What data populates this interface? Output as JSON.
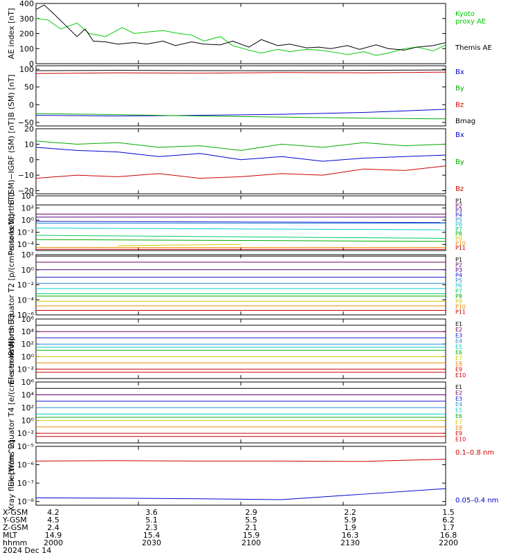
{
  "chart_data": [
    {
      "type": "line",
      "ylabel": "AE index [nT]",
      "ylim": [
        0,
        400
      ],
      "ylog": false,
      "yticks": [
        "400",
        "300",
        "200",
        "100",
        "0"
      ],
      "ytickvals": [
        400,
        300,
        200,
        100,
        0
      ],
      "series": [
        {
          "name": "Kyoto proxy AE",
          "color": "#00cc00",
          "legend_lines": [
            "Kyoto",
            "proxy AE"
          ],
          "x": [
            0,
            3,
            6,
            10,
            13,
            17,
            21,
            24,
            27,
            31,
            35,
            38,
            41,
            45,
            48,
            52,
            55,
            59,
            62,
            66,
            69,
            73,
            76,
            80,
            83,
            86,
            90,
            93,
            97,
            100
          ],
          "y": [
            300,
            290,
            230,
            270,
            200,
            180,
            240,
            200,
            210,
            220,
            200,
            190,
            150,
            180,
            120,
            90,
            70,
            95,
            80,
            95,
            90,
            75,
            60,
            80,
            55,
            70,
            100,
            110,
            85,
            125
          ]
        },
        {
          "name": "Themis AE",
          "color": "#000000",
          "legend_lines": [
            "Themis AE"
          ],
          "x": [
            0,
            2,
            4,
            7,
            10,
            12,
            14,
            17,
            20,
            24,
            27,
            31,
            34,
            38,
            41,
            45,
            48,
            52,
            55,
            59,
            62,
            66,
            69,
            72,
            76,
            79,
            83,
            86,
            90,
            93,
            97,
            100
          ],
          "y": [
            360,
            390,
            340,
            260,
            180,
            230,
            150,
            145,
            130,
            140,
            130,
            150,
            120,
            145,
            130,
            125,
            150,
            110,
            160,
            120,
            130,
            105,
            110,
            100,
            120,
            95,
            125,
            100,
            90,
            110,
            120,
            140
          ]
        }
      ]
    },
    {
      "type": "line",
      "ylabel": "B (SM) [nT]",
      "ylim": [
        -60,
        110
      ],
      "ylog": false,
      "yticks": [
        "100",
        "50",
        "0",
        "−50"
      ],
      "ytickvals": [
        100,
        50,
        0,
        -50
      ],
      "series": [
        {
          "name": "Bx",
          "color": "#0000cc",
          "x": [
            0,
            20,
            40,
            60,
            80,
            100
          ],
          "y": [
            -30,
            -32,
            -30,
            -27,
            -22,
            -13
          ]
        },
        {
          "name": "By",
          "color": "#00aa00",
          "x": [
            0,
            20,
            40,
            60,
            80,
            100
          ],
          "y": [
            -25,
            -28,
            -32,
            -35,
            -38,
            -40
          ]
        },
        {
          "name": "Bz",
          "color": "#cc0000",
          "x": [
            0,
            20,
            40,
            60,
            80,
            100
          ],
          "y": [
            88,
            90,
            89,
            91,
            90,
            92
          ]
        },
        {
          "name": "Bmag",
          "color": "#000000",
          "x": [
            0,
            20,
            40,
            60,
            80,
            100
          ],
          "y": [
            96,
            97,
            96,
            96,
            97,
            98
          ]
        }
      ]
    },
    {
      "type": "line",
      "ylabel": "B (SM)−IGRF (SM) [nT]",
      "ylim": [
        -22,
        20
      ],
      "ylog": false,
      "yticks": [
        "20",
        "10",
        "0",
        "−10",
        "−20"
      ],
      "ytickvals": [
        20,
        10,
        0,
        -10,
        -20
      ],
      "series": [
        {
          "name": "Bx",
          "color": "#0000cc",
          "x": [
            0,
            10,
            20,
            30,
            40,
            50,
            60,
            70,
            80,
            90,
            100
          ],
          "y": [
            8,
            6,
            5,
            2,
            4,
            0,
            2,
            -1,
            1,
            2,
            3
          ]
        },
        {
          "name": "By",
          "color": "#00aa00",
          "x": [
            0,
            10,
            20,
            30,
            40,
            50,
            60,
            70,
            80,
            90,
            100
          ],
          "y": [
            12,
            10,
            11,
            8,
            9,
            6,
            10,
            8,
            11,
            9,
            10
          ]
        },
        {
          "name": "Bz",
          "color": "#cc0000",
          "x": [
            0,
            10,
            20,
            30,
            40,
            50,
            60,
            70,
            80,
            90,
            100
          ],
          "y": [
            -12,
            -10,
            -11,
            -9,
            -12,
            -11,
            -9,
            -10,
            -6,
            -7,
            -4
          ]
        }
      ]
    },
    {
      "type": "line",
      "ylabel": "Protons North T1",
      "ylim": [
        -5,
        4
      ],
      "ylog": true,
      "yticks": [
        "10⁴",
        "10²",
        "10⁰",
        "10⁻²",
        "10⁻⁴"
      ],
      "ytickvals": [
        4,
        2,
        0,
        -2,
        -4
      ],
      "series": [
        {
          "name": "P1",
          "color": "#000000",
          "x": [
            0,
            100
          ],
          "y": [
            2.5,
            2.5
          ]
        },
        {
          "name": "P2",
          "color": "#660066",
          "x": [
            0,
            100
          ],
          "y": [
            1.0,
            1.0
          ]
        },
        {
          "name": "P3",
          "color": "#4b0082",
          "x": [
            0,
            100
          ],
          "y": [
            0.5,
            0.5
          ]
        },
        {
          "name": "P4",
          "color": "#1414cc",
          "x": [
            0,
            100
          ],
          "y": [
            -0.2,
            -0.4
          ]
        },
        {
          "name": "P5",
          "color": "#2a8ad4",
          "x": [
            0,
            100
          ],
          "y": [
            -0.5,
            -0.5
          ]
        },
        {
          "name": "P6",
          "color": "#00cccc",
          "x": [
            0,
            100
          ],
          "y": [
            -1.3,
            -1.6
          ]
        },
        {
          "name": "P7",
          "color": "#00cc66",
          "x": [
            0,
            100
          ],
          "y": [
            -2.5,
            -3.0
          ]
        },
        {
          "name": "P8",
          "color": "#00aa00",
          "x": [
            0,
            100
          ],
          "y": [
            -3.2,
            -3.5
          ]
        },
        {
          "name": "P9",
          "color": "#cccc00",
          "x": [
            20,
            50
          ],
          "y": [
            -4.2,
            -4.0
          ]
        },
        {
          "name": "P10",
          "color": "#ee8800",
          "x": [
            0,
            100
          ],
          "y": [
            -4.5,
            -4.5
          ]
        },
        {
          "name": "P11",
          "color": "#cc0000",
          "x": [
            0,
            100
          ],
          "y": [
            -4.8,
            -4.8
          ]
        }
      ]
    },
    {
      "type": "line",
      "ylabel": "Protons Equator T2 [p/(cm²-s-sr-keV)]",
      "ylim": [
        -6,
        2
      ],
      "ylog": true,
      "yticks": [
        "10²",
        "10⁰",
        "10⁻²",
        "10⁻⁴",
        "10⁻⁶"
      ],
      "ytickvals": [
        2,
        0,
        -2,
        -4,
        -6
      ],
      "series": [
        {
          "name": "P1",
          "color": "#000000",
          "x": [
            0,
            100
          ],
          "y": [
            1.8,
            1.8
          ]
        },
        {
          "name": "P2",
          "color": "#660066",
          "x": [
            0,
            100
          ],
          "y": [
            1.0,
            1.0
          ]
        },
        {
          "name": "P3",
          "color": "#4b0082",
          "x": [
            0,
            100
          ],
          "y": [
            0.0,
            0.0
          ]
        },
        {
          "name": "P4",
          "color": "#1414cc",
          "x": [
            0,
            100
          ],
          "y": [
            -1.0,
            -1.0
          ]
        },
        {
          "name": "P5",
          "color": "#2a8ad4",
          "x": [
            0,
            100
          ],
          "y": [
            -1.8,
            -1.8
          ]
        },
        {
          "name": "P6",
          "color": "#00cccc",
          "x": [
            0,
            100
          ],
          "y": [
            -2.5,
            -2.5
          ]
        },
        {
          "name": "P7",
          "color": "#00cc66",
          "x": [
            0,
            100
          ],
          "y": [
            -3.2,
            -3.2
          ]
        },
        {
          "name": "P8",
          "color": "#00aa00",
          "x": [
            0,
            100
          ],
          "y": [
            -3.5,
            -3.5
          ]
        },
        {
          "name": "P9",
          "color": "#cccc00",
          "x": [
            0,
            100
          ],
          "y": [
            -4.2,
            -4.2
          ]
        },
        {
          "name": "P10",
          "color": "#ee8800",
          "x": [
            0,
            100
          ],
          "y": [
            -4.8,
            -4.8
          ]
        },
        {
          "name": "P11",
          "color": "#cc0000",
          "x": [
            0,
            100
          ],
          "y": [
            -5.4,
            -5.4
          ]
        }
      ]
    },
    {
      "type": "line",
      "ylabel": "Electrons North T3",
      "ylim": [
        -3.5,
        6
      ],
      "ylog": true,
      "yticks": [
        "10⁶",
        "10⁴",
        "10²",
        "10⁰",
        "10⁻²"
      ],
      "ytickvals": [
        6,
        4,
        2,
        0,
        -2
      ],
      "series": [
        {
          "name": "E1",
          "color": "#000000",
          "x": [
            0,
            100
          ],
          "y": [
            5,
            5
          ]
        },
        {
          "name": "E2",
          "color": "#660066",
          "x": [
            0,
            100
          ],
          "y": [
            4,
            4
          ]
        },
        {
          "name": "E3",
          "color": "#1414cc",
          "x": [
            0,
            100
          ],
          "y": [
            3,
            3
          ]
        },
        {
          "name": "E4",
          "color": "#2a8ad4",
          "x": [
            0,
            100
          ],
          "y": [
            2,
            2
          ]
        },
        {
          "name": "E5",
          "color": "#00cccc",
          "x": [
            0,
            100
          ],
          "y": [
            1.5,
            1.5
          ]
        },
        {
          "name": "E6",
          "color": "#00aa00",
          "x": [
            0,
            100
          ],
          "y": [
            1,
            1
          ]
        },
        {
          "name": "E7",
          "color": "#cccc00",
          "x": [
            0,
            100
          ],
          "y": [
            0,
            0
          ]
        },
        {
          "name": "E8",
          "color": "#ee8800",
          "x": [
            0,
            100
          ],
          "y": [
            -1,
            -1
          ]
        },
        {
          "name": "E9",
          "color": "#cc0000",
          "x": [
            0,
            100
          ],
          "y": [
            -2,
            -2
          ]
        },
        {
          "name": "E10",
          "color": "#cc0000",
          "x": [
            0,
            100
          ],
          "y": [
            -2.5,
            -2.5
          ]
        }
      ]
    },
    {
      "type": "line",
      "ylabel": "Electrons Equator T4 [e/(cm²-s-sr-keV)]",
      "ylim": [
        -3.5,
        6
      ],
      "ylog": true,
      "yticks": [
        "10⁶",
        "10⁴",
        "10²",
        "10⁰",
        "10⁻²"
      ],
      "ytickvals": [
        6,
        4,
        2,
        0,
        -2
      ],
      "series": [
        {
          "name": "E1",
          "color": "#000000",
          "x": [
            0,
            100
          ],
          "y": [
            5,
            5
          ]
        },
        {
          "name": "E2",
          "color": "#660066",
          "x": [
            0,
            100
          ],
          "y": [
            4,
            4
          ]
        },
        {
          "name": "E3",
          "color": "#1414cc",
          "x": [
            0,
            100
          ],
          "y": [
            3,
            3
          ]
        },
        {
          "name": "E4",
          "color": "#2a8ad4",
          "x": [
            0,
            100
          ],
          "y": [
            2,
            2
          ]
        },
        {
          "name": "E5",
          "color": "#00cccc",
          "x": [
            0,
            100
          ],
          "y": [
            1,
            1
          ]
        },
        {
          "name": "E6",
          "color": "#00aa00",
          "x": [
            0,
            100
          ],
          "y": [
            0.5,
            0.5
          ]
        },
        {
          "name": "E7",
          "color": "#cccc00",
          "x": [
            0,
            100
          ],
          "y": [
            0,
            0
          ]
        },
        {
          "name": "E8",
          "color": "#ee8800",
          "x": [
            0,
            100
          ],
          "y": [
            -1,
            -1
          ]
        },
        {
          "name": "E9",
          "color": "#cc0000",
          "x": [
            0,
            100
          ],
          "y": [
            -2,
            -2
          ]
        },
        {
          "name": "E10",
          "color": "#cc0000",
          "x": [
            0,
            100
          ],
          "y": [
            -2.5,
            -2.5
          ]
        }
      ]
    },
    {
      "type": "line",
      "ylabel": "Xray flux [W/m^2]",
      "ylim": [
        -8.2,
        -5
      ],
      "ylog": true,
      "yticks": [
        "10⁻⁵",
        "10⁻⁶",
        "10⁻⁷",
        "10⁻⁸"
      ],
      "ytickvals": [
        -5,
        -6,
        -7,
        -8
      ],
      "series": [
        {
          "name": "0.1–0.8 nm",
          "color": "#cc0000",
          "x": [
            0,
            20,
            40,
            60,
            80,
            100
          ],
          "y": [
            -5.8,
            -5.78,
            -5.8,
            -5.8,
            -5.82,
            -5.7
          ]
        },
        {
          "name": "0.05–0.4 nm",
          "color": "#0000cc",
          "x": [
            0,
            20,
            40,
            60,
            80,
            100
          ],
          "y": [
            -7.8,
            -7.82,
            -7.85,
            -7.9,
            -7.6,
            -7.3
          ]
        }
      ]
    }
  ],
  "footer": {
    "rows": [
      {
        "name": "X-GSM",
        "values": [
          "4.2",
          "3.6",
          "2.9",
          "2.2",
          "1.5"
        ]
      },
      {
        "name": "Y-GSM",
        "values": [
          "4.5",
          "5.1",
          "5.5",
          "5.9",
          "6.2"
        ]
      },
      {
        "name": "Z-GSM",
        "values": [
          "2.4",
          "2.3",
          "2.1",
          "1.9",
          "1.7"
        ]
      },
      {
        "name": "MLT",
        "values": [
          "14.9",
          "15.4",
          "15.9",
          "16.3",
          "16.8"
        ]
      },
      {
        "name": "hhmm",
        "values": [
          "2000",
          "2030",
          "2100",
          "2130",
          "2200"
        ]
      }
    ],
    "date": "2024 Dec 14"
  }
}
